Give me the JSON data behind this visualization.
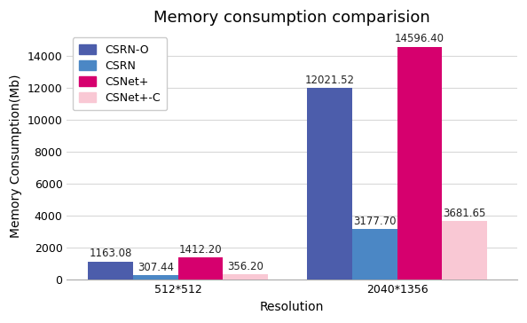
{
  "title": "Memory consumption comparision",
  "xlabel": "Resolution",
  "ylabel": "Memory Consumption(Mb)",
  "categories": [
    "512*512",
    "2040*1356"
  ],
  "series": [
    {
      "label": "CSRN-O",
      "color": "#4c5dab",
      "values": [
        1163.08,
        12021.52
      ]
    },
    {
      "label": "CSRN",
      "color": "#4b87c5",
      "values": [
        307.44,
        3177.7
      ]
    },
    {
      "label": "CSNet+",
      "color": "#d6006e",
      "values": [
        1412.2,
        14596.4
      ]
    },
    {
      "label": "CSNet+-C",
      "color": "#f9c8d4",
      "values": [
        356.2,
        3681.65
      ]
    }
  ],
  "ylim": [
    0,
    15500
  ],
  "yticks": [
    0,
    2000,
    4000,
    6000,
    8000,
    10000,
    12000,
    14000
  ],
  "bar_width": 0.15,
  "group_centers": [
    0.27,
    1.0
  ],
  "background_color": "#ffffff",
  "grid_color": "#d8d8d8",
  "title_fontsize": 13,
  "label_fontsize": 10,
  "tick_fontsize": 9,
  "annotation_fontsize": 8.5
}
